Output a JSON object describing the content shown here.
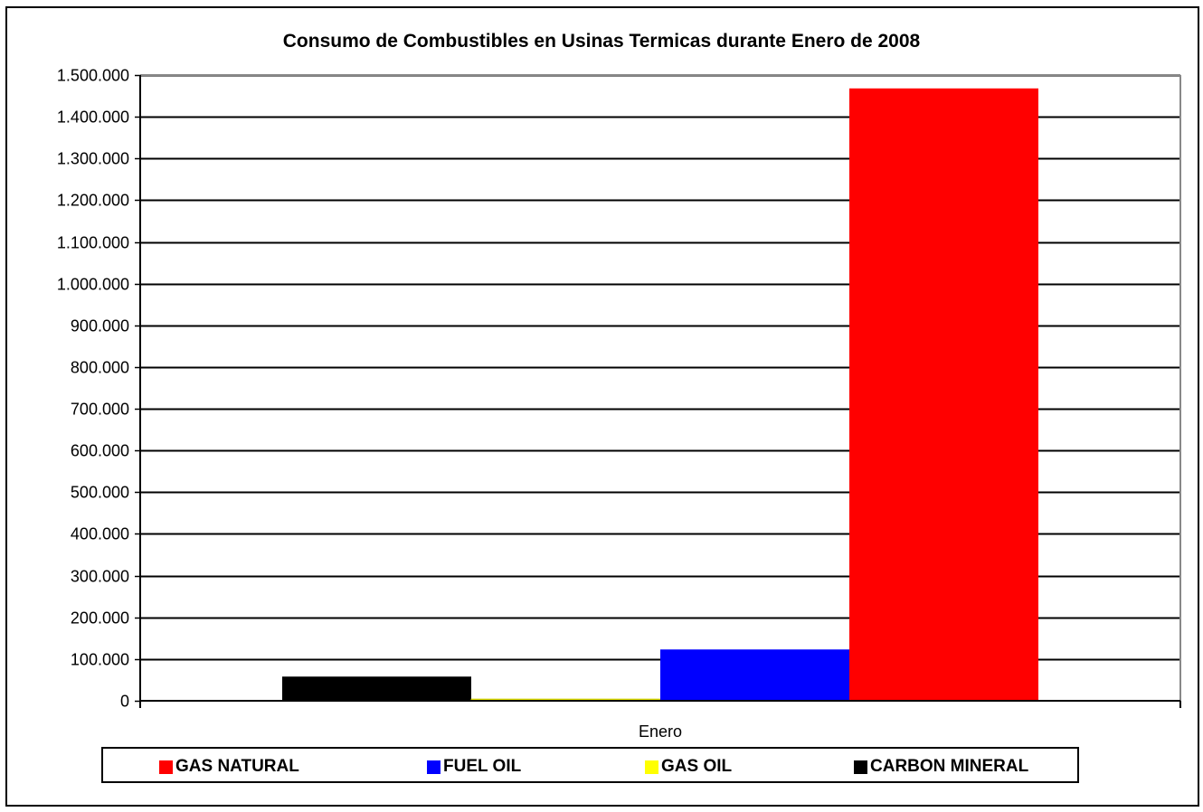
{
  "chart_data": {
    "type": "bar",
    "title": "Consumo de Combustibles en Usinas Termicas durante Enero de 2008",
    "categories": [
      "Enero"
    ],
    "series": [
      {
        "name": "CARBON MINERAL",
        "values": [
          58000
        ],
        "color": "#000000"
      },
      {
        "name": "GAS OIL",
        "values": [
          4000
        ],
        "color": "#FFFF00"
      },
      {
        "name": "FUEL OIL",
        "values": [
          123000
        ],
        "color": "#0000FF"
      },
      {
        "name": "GAS NATURAL",
        "values": [
          1468000
        ],
        "color": "#FF0000"
      }
    ],
    "ylim": [
      0,
      1500000
    ],
    "yticks": [
      0,
      100000,
      200000,
      300000,
      400000,
      500000,
      600000,
      700000,
      800000,
      900000,
      1000000,
      1100000,
      1200000,
      1300000,
      1400000,
      1500000
    ],
    "ytick_labels": [
      "0",
      "100.000",
      "200.000",
      "300.000",
      "400.000",
      "500.000",
      "600.000",
      "700.000",
      "800.000",
      "900.000",
      "1.000.000",
      "1.100.000",
      "1.200.000",
      "1.300.000",
      "1.400.000",
      "1.500.000"
    ],
    "grid": true,
    "legend": {
      "placement": "bottom",
      "entries": [
        {
          "label": "GAS NATURAL",
          "color": "#FF0000"
        },
        {
          "label": "FUEL OIL",
          "color": "#0000FF"
        },
        {
          "label": "GAS OIL",
          "color": "#FFFF00"
        },
        {
          "label": "CARBON MINERAL",
          "color": "#000000"
        }
      ]
    }
  }
}
